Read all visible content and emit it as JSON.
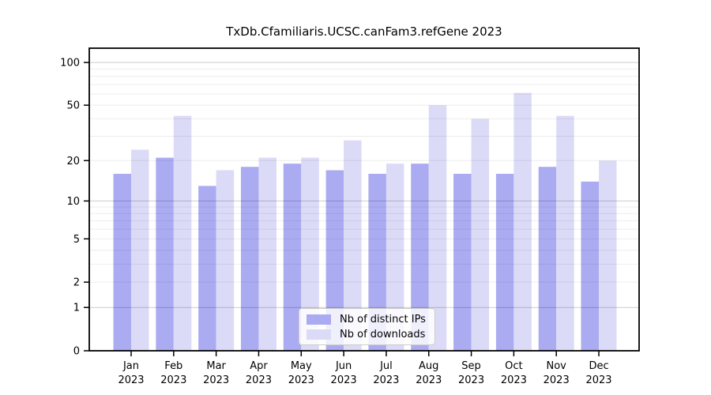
{
  "title": "TxDb.Cfamiliaris.UCSC.canFam3.refGene 2023",
  "colors": {
    "distinct_ips": "#ababf2",
    "downloads": "#dbdbf7",
    "axis": "#000000",
    "tick_text": "#000000",
    "grid_minor": "rgba(0,0,0,0.07)",
    "grid_major": "rgba(0,0,0,0.20)",
    "background": "#ffffff"
  },
  "legend": {
    "items": [
      {
        "label": "Nb of distinct IPs",
        "color_key": "distinct_ips"
      },
      {
        "label": "Nb of downloads",
        "color_key": "downloads"
      }
    ]
  },
  "chart_data": {
    "type": "bar",
    "title": "TxDb.Cfamiliaris.UCSC.canFam3.refGene 2023",
    "yscale": "log10(1+x)",
    "grid": true,
    "legend_position": "lower center",
    "xlabel": "",
    "ylabel": "",
    "categories": [
      "Jan 2023",
      "Feb 2023",
      "Mar 2023",
      "Apr 2023",
      "May 2023",
      "Jun 2023",
      "Jul 2023",
      "Aug 2023",
      "Sep 2023",
      "Oct 2023",
      "Nov 2023",
      "Dec 2023"
    ],
    "series": [
      {
        "name": "Nb of distinct IPs",
        "color_key": "distinct_ips",
        "values": [
          16,
          21,
          13,
          18,
          19,
          17,
          16,
          19,
          16,
          16,
          18,
          14
        ]
      },
      {
        "name": "Nb of downloads",
        "color_key": "downloads",
        "values": [
          24,
          42,
          17,
          21,
          21,
          28,
          19,
          50,
          40,
          61,
          42,
          20
        ]
      }
    ],
    "y_ticks": [
      100,
      50,
      20,
      10,
      5,
      2,
      1,
      0
    ],
    "y_tick_labels": [
      "100",
      "50",
      "20",
      "10",
      "5",
      "2",
      "1",
      "0"
    ],
    "grid_minor": [
      2,
      3,
      4,
      5,
      6,
      7,
      8,
      9,
      20,
      30,
      40,
      50,
      60,
      70,
      80,
      90
    ],
    "grid_major": [
      1,
      10,
      100
    ],
    "ylim": [
      0,
      126
    ]
  }
}
